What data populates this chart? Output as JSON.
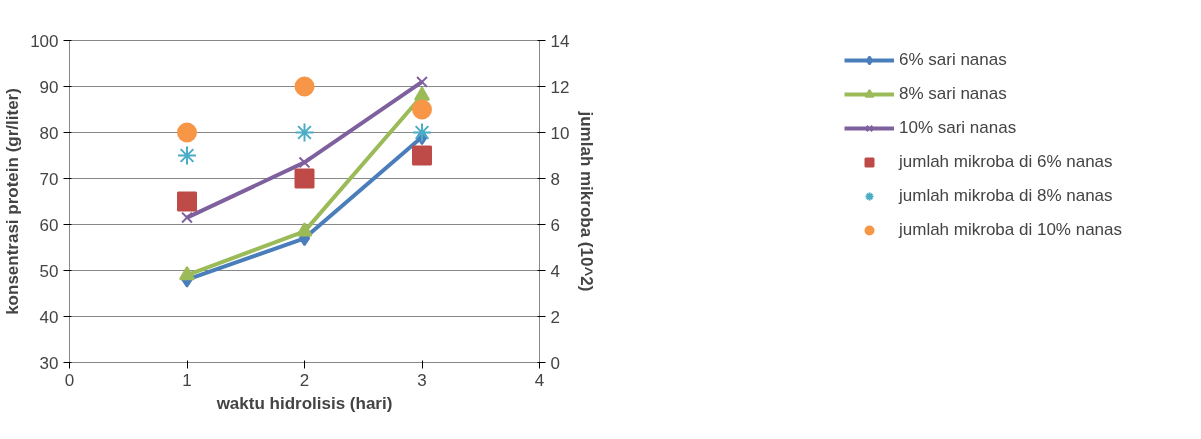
{
  "chart_data": {
    "type": "line",
    "xlabel": "waktu hidrolisis (hari)",
    "ylabel": "konsentrasi protein (gr/liter)",
    "y2label": "jumlah mikroba (10^2)",
    "xlim": [
      0,
      4
    ],
    "xticks": [
      0,
      1,
      2,
      3,
      4
    ],
    "ylim": [
      30,
      100
    ],
    "yticks": [
      30,
      40,
      50,
      60,
      70,
      80,
      90,
      100
    ],
    "y2lim": [
      0,
      14
    ],
    "y2ticks": [
      0,
      2,
      4,
      6,
      8,
      10,
      12,
      14
    ],
    "grid": "y",
    "legend": "right",
    "x": [
      1,
      2,
      3
    ],
    "series": [
      {
        "name": "6% sari nanas",
        "color": "#4a7ebb",
        "marker": "diamond",
        "values": [
          48,
          57,
          79
        ]
      },
      {
        "name": "8% sari nanas",
        "color": "#9bbb59",
        "marker": "triangle",
        "values": [
          49,
          58.5,
          88
        ]
      },
      {
        "name": "10% sari nanas",
        "color": "#7f609f",
        "marker": "cross",
        "values": [
          61.5,
          73.5,
          91
        ]
      },
      {
        "name": "jumlah mikroba di 6% nanas",
        "type": "scatter",
        "axis": "y2",
        "color": "#be4b48",
        "marker": "square",
        "values": [
          7,
          8,
          9
        ]
      },
      {
        "name": "jumlah mikroba di 8% nanas",
        "type": "scatter",
        "axis": "y2",
        "color": "#4bacc6",
        "marker": "cross",
        "values": [
          9,
          10,
          10
        ]
      },
      {
        "name": "jumlah mikroba di 10% nanas",
        "type": "scatter",
        "axis": "y2",
        "color": "#f79646",
        "marker": "circle",
        "values": [
          10,
          12,
          11
        ]
      }
    ]
  }
}
